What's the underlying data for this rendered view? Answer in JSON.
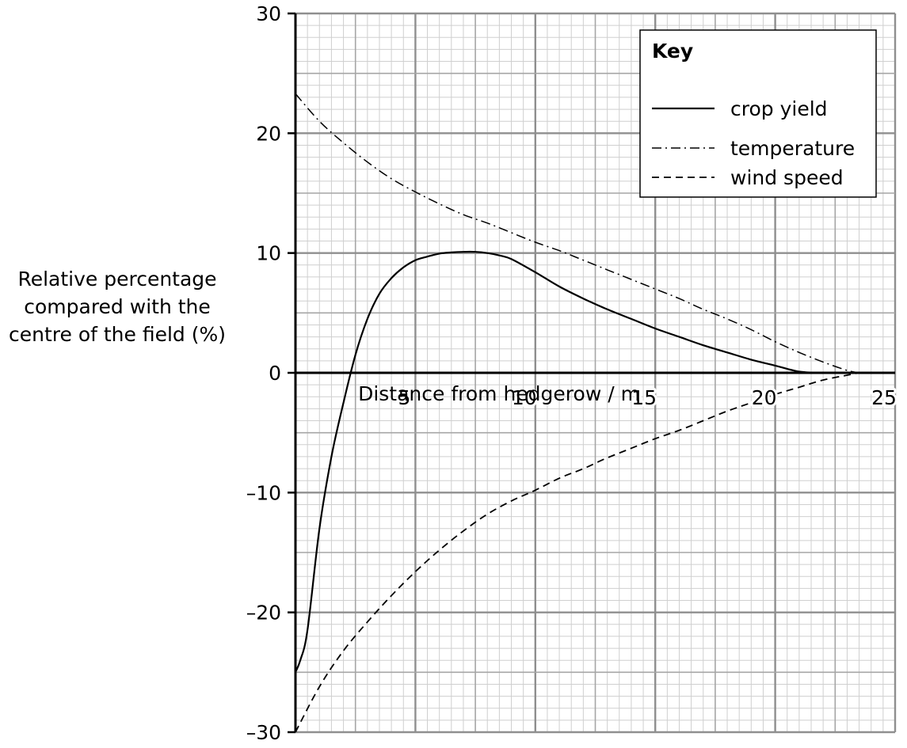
{
  "chart_data": {
    "type": "line",
    "xlabel": "Distance from hedgerow / m",
    "ylabel": [
      "Relative percentage",
      "compared with the",
      "centre of the field (%)"
    ],
    "xlim": [
      0,
      25
    ],
    "ylim": [
      -30,
      30
    ],
    "x_ticks": [
      5,
      10,
      15,
      20,
      25
    ],
    "y_ticks": [
      30,
      20,
      10,
      0,
      -10,
      -20,
      -30
    ],
    "x_tick_labels": [
      "5",
      "10",
      "15",
      "20",
      "25"
    ],
    "y_tick_labels": [
      "30",
      "20",
      "10",
      "0",
      "–10",
      "–20",
      "–30"
    ],
    "grid": true,
    "legend_title": "Key",
    "legend_position": "top-right",
    "series": [
      {
        "name": "crop yield",
        "style": "solid",
        "x": [
          0,
          0.2,
          0.5,
          1,
          1.5,
          2,
          2.5,
          3,
          3.5,
          4,
          4.5,
          5,
          5.5,
          6,
          6.5,
          7,
          7.5,
          8,
          8.5,
          9,
          10,
          11,
          12,
          13,
          14,
          15,
          16,
          17,
          18,
          19,
          20,
          21,
          22
        ],
        "y": [
          -25,
          -24,
          -21.5,
          -13,
          -7,
          -2.5,
          1.5,
          4.5,
          6.6,
          7.9,
          8.8,
          9.4,
          9.7,
          9.95,
          10.05,
          10.1,
          10.1,
          10,
          9.8,
          9.5,
          8.4,
          7.2,
          6.2,
          5.3,
          4.5,
          3.7,
          3,
          2.3,
          1.7,
          1.1,
          0.6,
          0.1,
          0
        ]
      },
      {
        "name": "temperature",
        "style": "dashdot",
        "x": [
          0,
          1,
          2,
          3,
          4,
          5,
          6,
          7,
          8,
          9,
          10,
          11,
          12,
          13,
          14,
          15,
          16,
          17,
          18,
          19,
          20,
          21,
          22,
          23,
          23.5
        ],
        "y": [
          23.3,
          21,
          19.2,
          17.6,
          16.2,
          15.1,
          14.1,
          13.2,
          12.5,
          11.7,
          10.9,
          10.2,
          9.4,
          8.6,
          7.8,
          7,
          6.2,
          5.3,
          4.5,
          3.6,
          2.6,
          1.7,
          0.9,
          0.2,
          0
        ]
      },
      {
        "name": "wind speed",
        "style": "dashed",
        "x": [
          0,
          1,
          2,
          3,
          4,
          5,
          6,
          7,
          8,
          9,
          10,
          11,
          12,
          13,
          14,
          15,
          16,
          17,
          18,
          19,
          20,
          21,
          22,
          23,
          23.5
        ],
        "y": [
          -30,
          -26.2,
          -23.2,
          -20.8,
          -18.6,
          -16.6,
          -14.8,
          -13.2,
          -11.8,
          -10.7,
          -9.8,
          -8.8,
          -8,
          -7.1,
          -6.3,
          -5.5,
          -4.8,
          -4,
          -3.2,
          -2.5,
          -1.8,
          -1.2,
          -0.6,
          -0.2,
          0
        ]
      }
    ]
  }
}
